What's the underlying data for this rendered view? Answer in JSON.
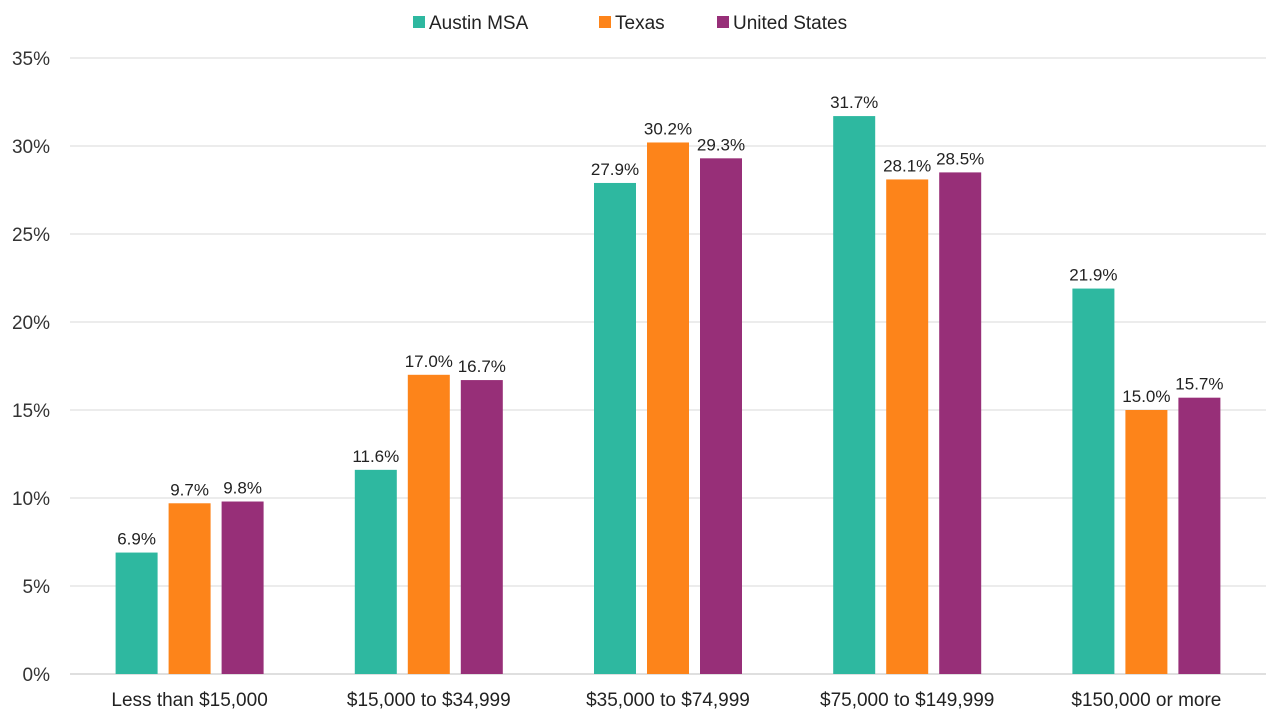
{
  "chart_data": {
    "type": "bar",
    "title": "",
    "xlabel": "",
    "ylabel": "",
    "categories": [
      "Less than $15,000",
      "$15,000 to $34,999",
      "$35,000 to $74,999",
      "$75,000 to $149,999",
      "$150,000 or more"
    ],
    "series": [
      {
        "name": "Austin MSA",
        "color": "#2eb8a0",
        "values": [
          6.9,
          11.6,
          27.9,
          31.7,
          21.9
        ],
        "labels": [
          "6.9%",
          "11.6%",
          "27.9%",
          "31.7%",
          "21.9%"
        ]
      },
      {
        "name": "Texas",
        "color": "#fd841a",
        "values": [
          9.7,
          17.0,
          30.2,
          28.1,
          15.0
        ],
        "labels": [
          "9.7%",
          "17.0%",
          "30.2%",
          "28.1%",
          "15.0%"
        ]
      },
      {
        "name": "United States",
        "color": "#972f78",
        "values": [
          9.8,
          16.7,
          29.3,
          28.5,
          15.7
        ],
        "labels": [
          "9.8%",
          "16.7%",
          "29.3%",
          "28.5%",
          "15.7%"
        ]
      }
    ],
    "ylim": [
      0,
      35
    ],
    "yticks": [
      0,
      5,
      10,
      15,
      20,
      25,
      30,
      35
    ],
    "ytick_labels": [
      "0%",
      "5%",
      "10%",
      "15%",
      "20%",
      "25%",
      "30%",
      "35%"
    ],
    "grid": true,
    "legend_position": "top-center"
  }
}
